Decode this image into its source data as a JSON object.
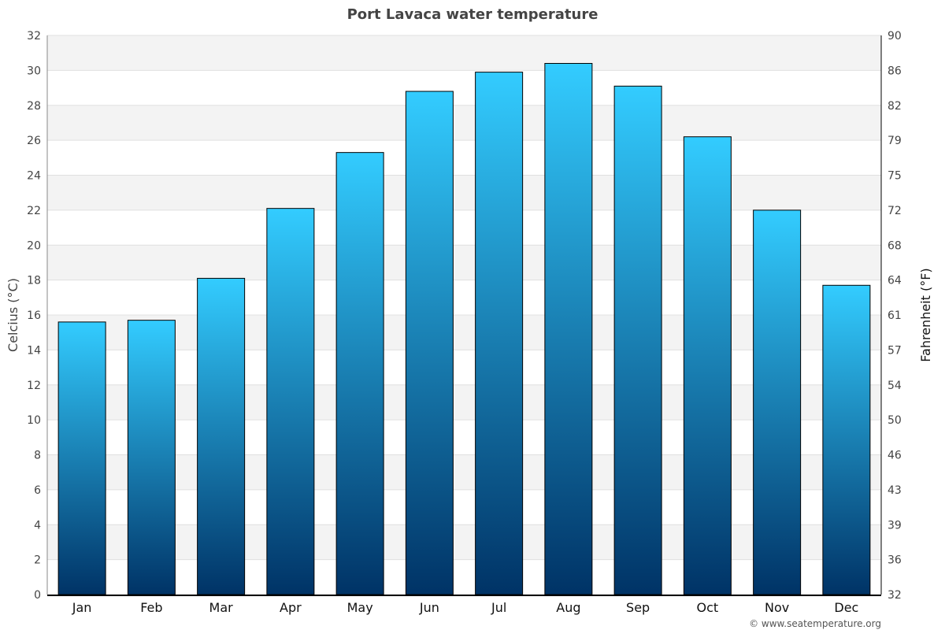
{
  "chart_data": {
    "type": "bar",
    "title": "Port Lavaca water temperature",
    "categories": [
      "Jan",
      "Feb",
      "Mar",
      "Apr",
      "May",
      "Jun",
      "Jul",
      "Aug",
      "Sep",
      "Oct",
      "Nov",
      "Dec"
    ],
    "values": [
      15.6,
      15.7,
      18.1,
      22.1,
      25.3,
      28.8,
      29.9,
      30.4,
      29.1,
      26.2,
      22.0,
      17.7
    ],
    "ylabel": "Celcius (°C)",
    "ylabel_right": "Fahrenheit (°F)",
    "ylim": [
      0,
      32
    ],
    "yticks": [
      0,
      2,
      4,
      6,
      8,
      10,
      12,
      14,
      16,
      18,
      20,
      22,
      24,
      26,
      28,
      30,
      32
    ],
    "yticks_right": [
      32,
      36,
      39,
      43,
      46,
      50,
      54,
      57,
      61,
      64,
      68,
      72,
      75,
      79,
      82,
      86,
      90
    ],
    "grid": true,
    "bar_colors": {
      "top": "#33ccff",
      "bottom": "#003366"
    },
    "band_color": "#f3f3f3"
  },
  "credit": "© www.seatemperature.org"
}
